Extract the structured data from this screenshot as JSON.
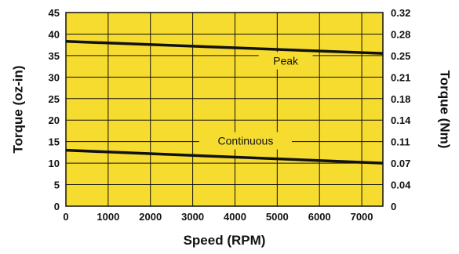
{
  "chart_data": {
    "type": "line",
    "title": "",
    "xlabel": "Speed (RPM)",
    "ylabel": "Torque (oz-in)",
    "ylabel_right": "Torque (Nm)",
    "xlim": [
      0,
      7500
    ],
    "ylim": [
      0,
      45
    ],
    "grid": true,
    "background": "#f7dc30",
    "x_ticks": [
      "0",
      "1000",
      "2000",
      "3000",
      "4000",
      "5000",
      "6000",
      "7000"
    ],
    "x_tick_values": [
      0,
      1000,
      2000,
      3000,
      4000,
      5000,
      6000,
      7000
    ],
    "y_ticks": [
      "0",
      "5",
      "10",
      "15",
      "20",
      "25",
      "30",
      "35",
      "40",
      "45"
    ],
    "y_tick_values": [
      0,
      5,
      10,
      15,
      20,
      25,
      30,
      35,
      40,
      45
    ],
    "y_right_ticks": [
      "0",
      "0.04",
      "0.07",
      "0.11",
      "0.14",
      "0.18",
      "0.21",
      "0.25",
      "0.28",
      "0.32"
    ],
    "series": [
      {
        "name": "Peak",
        "x": [
          0,
          7500
        ],
        "y": [
          38.3,
          35.5
        ],
        "label_x": 5200,
        "label_y": 33.8
      },
      {
        "name": "Continuous",
        "x": [
          0,
          7500
        ],
        "y": [
          13.0,
          10.0
        ],
        "label_x": 4250,
        "label_y": 15.2
      }
    ]
  }
}
